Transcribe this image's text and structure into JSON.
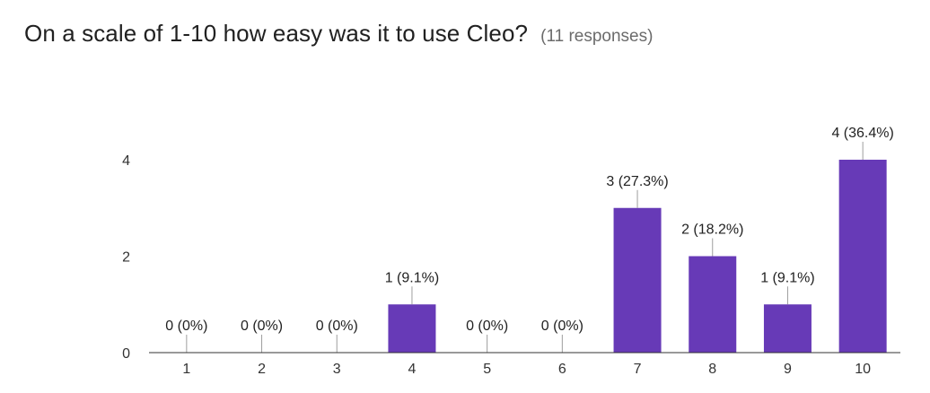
{
  "header": {
    "title": "On a scale of 1-10 how easy was it to use Cleo?",
    "responses": "(11 responses)"
  },
  "colors": {
    "bar": "#673ab7",
    "axis": "#333333",
    "leader": "#9e9e9e"
  },
  "chart_data": {
    "type": "bar",
    "categories": [
      "1",
      "2",
      "3",
      "4",
      "5",
      "6",
      "7",
      "8",
      "9",
      "10"
    ],
    "values": [
      0,
      0,
      0,
      1,
      0,
      0,
      3,
      2,
      1,
      4
    ],
    "data_labels": [
      "0 (0%)",
      "0 (0%)",
      "0 (0%)",
      "1 (9.1%)",
      "0 (0%)",
      "0 (0%)",
      "3 (27.3%)",
      "2 (18.2%)",
      "1 (9.1%)",
      "4 (36.4%)"
    ],
    "yticks": [
      "0",
      "2",
      "4"
    ],
    "ylim": [
      0,
      4
    ],
    "grid": false,
    "legend": "none"
  }
}
